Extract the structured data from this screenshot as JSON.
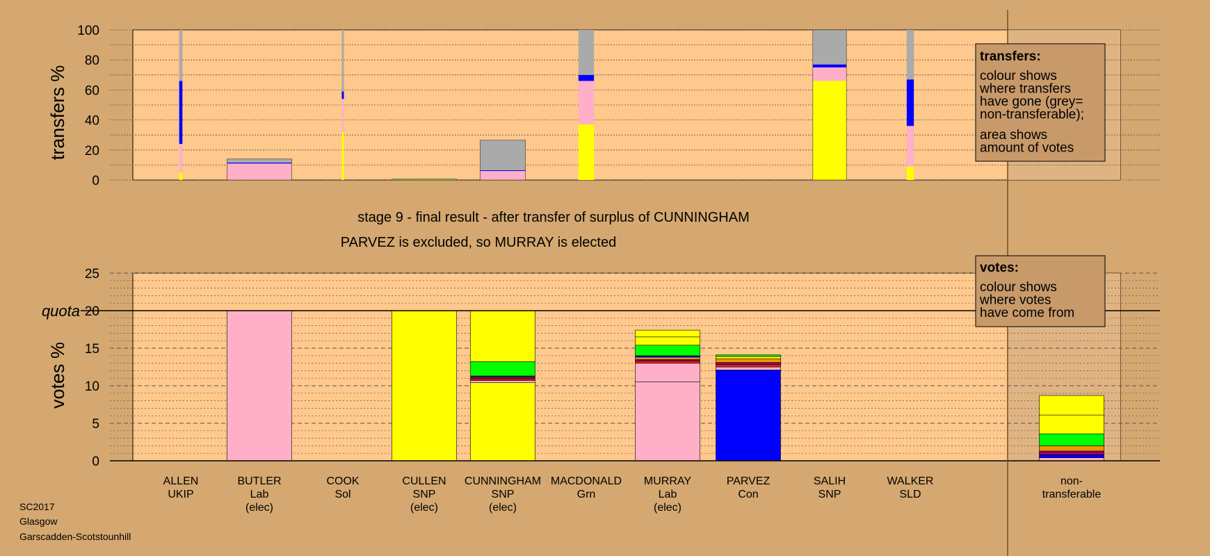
{
  "header": {
    "stage_line": "stage 9 - final result - after transfer of surplus of CUNNINGHAM",
    "result_line": "PARVEZ is excluded, so MURRAY is elected"
  },
  "footer": {
    "election": "SC2017",
    "council": "Glasgow",
    "ward": "Garscadden-Scotstounhill"
  },
  "colors": {
    "background": "#d4a870",
    "plot_bg": "#ffc88c",
    "right_bg": "#e0b482",
    "Lab": "#ffb0c8",
    "SNP": "#ffff00",
    "Con": "#0000ff",
    "Grn": "#00ff00",
    "UKIP": "#990066",
    "Sol": "#ee2222",
    "SLD": "#ee9900",
    "nontransferable": "#aaaaaa",
    "legend_bg": "#c89a6a"
  },
  "legends": {
    "transfers": {
      "title": "transfers:",
      "lines": [
        "colour shows",
        "where transfers",
        "have gone (grey=",
        "non-transferable);"
      ],
      "lines2": [
        "area shows",
        "amount of votes"
      ]
    },
    "votes": {
      "title": "votes:",
      "lines": [
        "colour shows",
        "where votes",
        "have come from"
      ]
    }
  },
  "chart_data": [
    {
      "type": "bar",
      "ylabel": "transfers %",
      "ylim": [
        0,
        100
      ],
      "yticks": [
        0,
        20,
        40,
        60,
        80,
        100
      ],
      "grid": true,
      "legend": "top-right",
      "bars": [
        {
          "candidate": "ALLEN",
          "width_share": 0.05,
          "segments": [
            {
              "party": "SNP",
              "value": 5
            },
            {
              "party": "Lab",
              "value": 19
            },
            {
              "party": "Con",
              "value": 42
            },
            {
              "party": "nontransferable",
              "value": 34
            }
          ]
        },
        {
          "candidate": "BUTLER",
          "width_share": 1.0,
          "segments": [
            {
              "party": "Lab",
              "value": 11
            },
            {
              "party": "Con",
              "value": 0.6
            },
            {
              "party": "nontransferable",
              "value": 2.4
            }
          ]
        },
        {
          "candidate": "COOK",
          "width_share": 0.03,
          "segments": [
            {
              "party": "SNP",
              "value": 32
            },
            {
              "party": "Lab",
              "value": 22
            },
            {
              "party": "Con",
              "value": 5
            },
            {
              "party": "nontransferable",
              "value": 41
            }
          ]
        },
        {
          "candidate": "CULLEN",
          "width_share": 1.0,
          "segments": [
            {
              "party": "SNP",
              "value": 0.3
            },
            {
              "party": "Grn",
              "value": 0.3
            }
          ]
        },
        {
          "candidate": "CUNNINGHAM",
          "width_share": 0.7,
          "segments": [
            {
              "party": "Lab",
              "value": 6
            },
            {
              "party": "Con",
              "value": 0.5
            },
            {
              "party": "nontransferable",
              "value": 20
            }
          ]
        },
        {
          "candidate": "MACDONALD",
          "width_share": 0.24,
          "segments": [
            {
              "party": "SNP",
              "value": 37
            },
            {
              "party": "Lab",
              "value": 29
            },
            {
              "party": "Con",
              "value": 4
            },
            {
              "party": "nontransferable",
              "value": 30
            }
          ]
        },
        {
          "candidate": "SALIH",
          "width_share": 0.52,
          "segments": [
            {
              "party": "SNP",
              "value": 66
            },
            {
              "party": "Lab",
              "value": 9
            },
            {
              "party": "Con",
              "value": 2
            },
            {
              "party": "nontransferable",
              "value": 23
            }
          ]
        },
        {
          "candidate": "WALKER",
          "width_share": 0.11,
          "segments": [
            {
              "party": "SNP",
              "value": 9
            },
            {
              "party": "Lab",
              "value": 27
            },
            {
              "party": "Con",
              "value": 31
            },
            {
              "party": "nontransferable",
              "value": 33
            }
          ]
        }
      ],
      "legend_labels": {
        "title_key": "transfers"
      }
    },
    {
      "type": "bar",
      "ylabel": "votes %",
      "ylim": [
        0,
        25
      ],
      "yticks": [
        0,
        5,
        10,
        15,
        20,
        25
      ],
      "quota": 20,
      "quota_label": "quota",
      "grid": true,
      "legend": "top-right",
      "candidates": [
        {
          "name": "ALLEN",
          "party": "UKIP",
          "status": ""
        },
        {
          "name": "BUTLER",
          "party": "Lab",
          "status": "(elec)"
        },
        {
          "name": "COOK",
          "party": "Sol",
          "status": ""
        },
        {
          "name": "CULLEN",
          "party": "SNP",
          "status": "(elec)"
        },
        {
          "name": "CUNNINGHAM",
          "party": "SNP",
          "status": "(elec)"
        },
        {
          "name": "MACDONALD",
          "party": "Grn",
          "status": ""
        },
        {
          "name": "MURRAY",
          "party": "Lab",
          "status": "(elec)"
        },
        {
          "name": "PARVEZ",
          "party": "Con",
          "status": ""
        },
        {
          "name": "SALIH",
          "party": "SNP",
          "status": ""
        },
        {
          "name": "WALKER",
          "party": "SLD",
          "status": ""
        }
      ],
      "nontransferable_label_1": "non-",
      "nontransferable_label_2": "transferable",
      "bars": [
        {
          "candidate": "BUTLER",
          "segments": [
            {
              "party": "Lab",
              "value": 20
            }
          ]
        },
        {
          "candidate": "CULLEN",
          "segments": [
            {
              "party": "SNP",
              "value": 20
            }
          ]
        },
        {
          "candidate": "CUNNINGHAM",
          "segments": [
            {
              "party": "SNP",
              "value": 10.4
            },
            {
              "party": "Lab",
              "value": 0.3
            },
            {
              "party": "Sol",
              "value": 0.2
            },
            {
              "party": "UKIP",
              "value": 0.2
            },
            {
              "party": "SLD",
              "value": 0.1
            },
            {
              "party": "Con",
              "value": 0.1
            },
            {
              "party": "Grn",
              "value": 1.9
            },
            {
              "party": "SNP",
              "value": 6.8
            }
          ]
        },
        {
          "candidate": "MURRAY",
          "segments": [
            {
              "party": "Lab",
              "value": 10.5
            },
            {
              "party": "Lab",
              "value": 2.5
            },
            {
              "party": "Sol",
              "value": 0.3
            },
            {
              "party": "UKIP",
              "value": 0.2
            },
            {
              "party": "SLD",
              "value": 0.3
            },
            {
              "party": "Con",
              "value": 0.2
            },
            {
              "party": "Grn",
              "value": 1.4
            },
            {
              "party": "SNP",
              "value": 1.1
            },
            {
              "party": "SNP",
              "value": 0.9
            }
          ]
        },
        {
          "candidate": "PARVEZ",
          "segments": [
            {
              "party": "Con",
              "value": 12.1
            },
            {
              "party": "Lab",
              "value": 0.4
            },
            {
              "party": "Sol",
              "value": 0.3
            },
            {
              "party": "UKIP",
              "value": 0.3
            },
            {
              "party": "SLD",
              "value": 0.5
            },
            {
              "party": "SNP",
              "value": 0.3
            },
            {
              "party": "Grn",
              "value": 0.2
            }
          ]
        },
        {
          "candidate": "non-transferable",
          "segments": [
            {
              "party": "Lab",
              "value": 0.4
            },
            {
              "party": "Con",
              "value": 0.4
            },
            {
              "party": "UKIP",
              "value": 0.5
            },
            {
              "party": "SLD",
              "value": 0.7
            },
            {
              "party": "Grn",
              "value": 1.6
            },
            {
              "party": "SNP",
              "value": 2.5
            },
            {
              "party": "SNP",
              "value": 2.6
            }
          ]
        }
      ]
    }
  ]
}
